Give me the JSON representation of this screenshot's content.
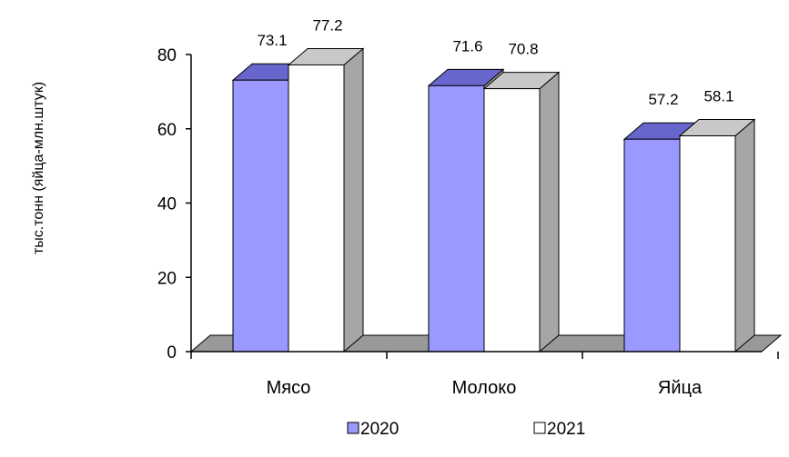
{
  "chart_data": {
    "type": "bar",
    "title": "",
    "xlabel": "",
    "ylabel": "тыс.тонн (яйца-млн.штук)",
    "categories": [
      "Мясо",
      "Молоко",
      "Яйца"
    ],
    "series": [
      {
        "name": "2020",
        "values": [
          73.1,
          71.6,
          57.2
        ],
        "labels": [
          "73.1",
          "71.6",
          "57.2"
        ],
        "color": "#9999ff"
      },
      {
        "name": "2021",
        "values": [
          77.2,
          70.8,
          58.1
        ],
        "labels": [
          "77.2",
          "70.8",
          "58.1"
        ],
        "color": "#ffffff"
      }
    ],
    "ylim": [
      0,
      80
    ],
    "yticks": [
      0,
      20,
      40,
      60,
      80
    ],
    "ytick_labels": [
      "0",
      "20",
      "40",
      "60",
      "80"
    ],
    "legend": {
      "position": "bottom",
      "entries": [
        "2020",
        "2021"
      ]
    },
    "grid": false,
    "style": "3d-clustered-column",
    "colors": {
      "series_2020_top": "#6666cc",
      "side": "#a6a6a6",
      "series_2021_top": "#c8c8c8",
      "floor": "#999999",
      "axis": "#000000"
    }
  }
}
